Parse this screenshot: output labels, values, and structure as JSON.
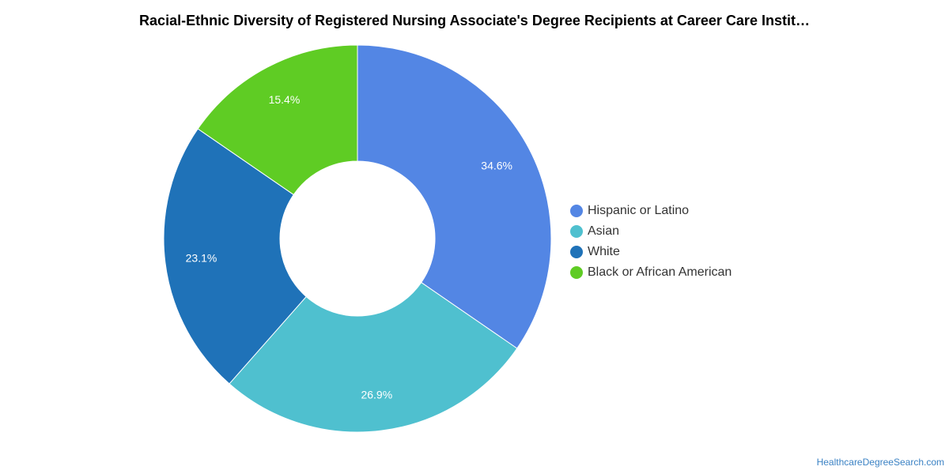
{
  "title": "Racial-Ethnic Diversity of Registered Nursing Associate's Degree Recipients at Career Care Instit…",
  "source": "HealthcareDegreeSearch.com",
  "chart_data": {
    "type": "pie",
    "donut": true,
    "title": "Racial-Ethnic Diversity of Registered Nursing Associate's Degree Recipients at Career Care Instit…",
    "legend_position": "right",
    "categories": [
      "Hispanic or Latino",
      "Asian",
      "White",
      "Black or African American"
    ],
    "values": [
      34.6,
      26.9,
      23.1,
      15.4
    ],
    "labels": [
      "34.6%",
      "26.9%",
      "23.1%",
      "15.4%"
    ],
    "colors": [
      "#5386e4",
      "#4fc0cf",
      "#1f72b8",
      "#5fcc24"
    ]
  }
}
